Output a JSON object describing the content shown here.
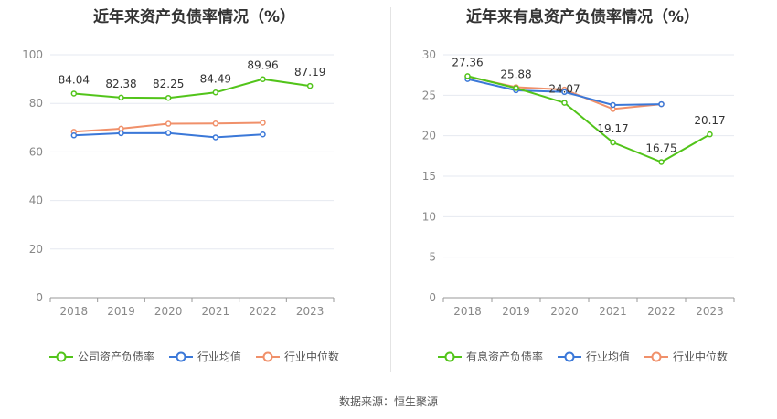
{
  "source_text": "数据来源：恒生聚源",
  "chart_data": [
    {
      "type": "line",
      "title": "近年来资产负债率情况（%）",
      "categories": [
        "2018",
        "2019",
        "2020",
        "2021",
        "2022",
        "2023"
      ],
      "ylim": [
        0,
        100
      ],
      "yticks": [
        0,
        20,
        40,
        60,
        80,
        100
      ],
      "grid": true,
      "legend_position": "bottom",
      "series": [
        {
          "name": "公司资产负债率",
          "color": "#52c41a",
          "values": [
            84.04,
            82.38,
            82.25,
            84.49,
            89.96,
            87.19
          ],
          "labels": [
            "84.04",
            "82.38",
            "82.25",
            "84.49",
            "89.96",
            "87.19"
          ]
        },
        {
          "name": "行业均值",
          "color": "#3b78d8",
          "values": [
            66.8,
            67.7,
            67.8,
            66.0,
            67.2,
            null
          ]
        },
        {
          "name": "行业中位数",
          "color": "#f0906a",
          "values": [
            68.3,
            69.6,
            71.6,
            71.7,
            72.0,
            null
          ]
        }
      ]
    },
    {
      "type": "line",
      "title": "近年来有息资产负债率情况（%）",
      "categories": [
        "2018",
        "2019",
        "2020",
        "2021",
        "2022",
        "2023"
      ],
      "ylim": [
        0,
        30
      ],
      "yticks": [
        0,
        5,
        10,
        15,
        20,
        25,
        30
      ],
      "grid": true,
      "legend_position": "bottom",
      "series": [
        {
          "name": "有息资产负债率",
          "color": "#52c41a",
          "values": [
            27.36,
            25.88,
            24.07,
            19.17,
            16.75,
            20.17
          ],
          "labels": [
            "27.36",
            "25.88",
            "24.07",
            "19.17",
            "16.75",
            "20.17"
          ]
        },
        {
          "name": "行业均值",
          "color": "#3b78d8",
          "values": [
            27.0,
            25.6,
            25.4,
            23.8,
            23.9,
            null
          ]
        },
        {
          "name": "行业中位数",
          "color": "#f0906a",
          "values": [
            27.3,
            26.0,
            25.7,
            23.3,
            23.9,
            null
          ]
        }
      ]
    }
  ]
}
